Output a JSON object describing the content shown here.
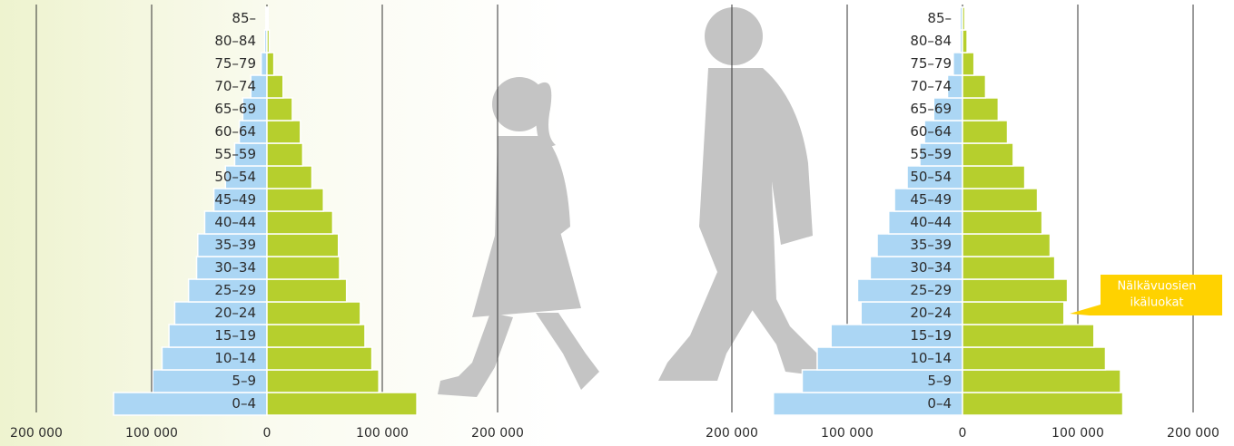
{
  "chart_data": [
    {
      "type": "bar",
      "categories": [
        "0–4",
        "5–9",
        "10–14",
        "15–19",
        "20–24",
        "25–29",
        "30–34",
        "35–39",
        "40–44",
        "45–49",
        "50–54",
        "55–59",
        "60–64",
        "65–69",
        "70–74",
        "75–79",
        "80–84",
        "85–"
      ],
      "series": [
        {
          "color": "#abd6f4",
          "values": [
            -133000,
            -99000,
            -91000,
            -85000,
            -80000,
            -68000,
            -61000,
            -60000,
            -54000,
            -46000,
            -36000,
            -28000,
            -24000,
            -21000,
            -14000,
            -5000,
            -2000,
            -1000
          ]
        },
        {
          "color": "#b6cf2d",
          "values": [
            130000,
            97000,
            91000,
            85000,
            81000,
            69000,
            63000,
            62000,
            57000,
            49000,
            39000,
            31000,
            29000,
            22000,
            14000,
            6000,
            2000,
            1000
          ]
        }
      ],
      "xlim": [
        -200000,
        200000
      ],
      "xticks": [
        {
          "value": -200000,
          "label": "200 000"
        },
        {
          "value": -100000,
          "label": "100 000"
        },
        0,
        {
          "value": 100000,
          "label": "100 000"
        },
        {
          "value": 200000,
          "label": "200 000"
        }
      ],
      "grid": true
    },
    {
      "type": "bar",
      "categories": [
        "0–4",
        "5–9",
        "10–14",
        "15–19",
        "20–24",
        "25–29",
        "30–34",
        "35–39",
        "40–44",
        "45–49",
        "50–54",
        "55–59",
        "60–64",
        "65–69",
        "70–74",
        "75–79",
        "80–84",
        "85–"
      ],
      "series": [
        {
          "color": "#abd6f4",
          "values": [
            -164000,
            -139000,
            -126000,
            -114000,
            -88000,
            -91000,
            -80000,
            -74000,
            -64000,
            -59000,
            -48000,
            -37000,
            -33000,
            -25000,
            -13000,
            -8000,
            -2000,
            -2000
          ]
        },
        {
          "color": "#b6cf2d",
          "values": [
            139000,
            137000,
            124000,
            114000,
            88000,
            91000,
            80000,
            76000,
            69000,
            65000,
            54000,
            44000,
            39000,
            31000,
            20000,
            10000,
            4000,
            2000
          ]
        }
      ],
      "xlim": [
        -200000,
        200000
      ],
      "xticks": [
        {
          "value": -200000,
          "label": "200 000"
        },
        {
          "value": -100000,
          "label": "100 000"
        },
        0,
        {
          "value": 100000,
          "label": "100 000"
        },
        {
          "value": 200000,
          "label": "200 000"
        }
      ],
      "grid": true,
      "annotation": [
        "Nälkävuosien",
        "ikäluokat"
      ]
    }
  ]
}
